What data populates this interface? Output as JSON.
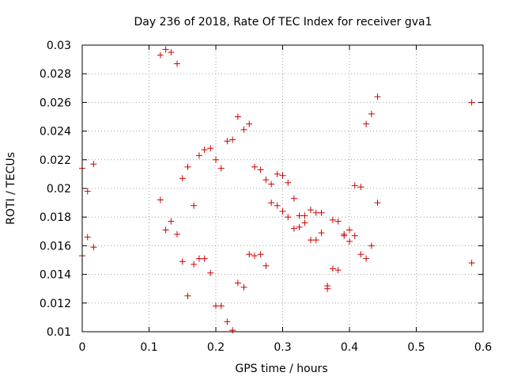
{
  "chart_data": {
    "type": "scatter",
    "title": "Day 236 of 2018, Rate Of TEC Index for receiver gva1",
    "xlabel": "GPS time / hours",
    "ylabel": "ROTI / TECUs",
    "xlim": [
      0,
      0.6
    ],
    "ylim": [
      0.01,
      0.03
    ],
    "xticks": [
      "0",
      "0.1",
      "0.2",
      "0.3",
      "0.4",
      "0.5",
      "0.6"
    ],
    "yticks": [
      "0.01",
      "0.012",
      "0.014",
      "0.016",
      "0.018",
      "0.02",
      "0.022",
      "0.024",
      "0.026",
      "0.028",
      "0.03"
    ],
    "grid": true,
    "marker": "+",
    "marker_color": "#cc0000",
    "series": [
      {
        "name": "gva1",
        "points": [
          [
            0.0,
            0.0214
          ],
          [
            0.0,
            0.0153
          ],
          [
            0.008,
            0.0198
          ],
          [
            0.008,
            0.0166
          ],
          [
            0.017,
            0.0217
          ],
          [
            0.017,
            0.0159
          ],
          [
            0.117,
            0.0293
          ],
          [
            0.117,
            0.0192
          ],
          [
            0.125,
            0.0297
          ],
          [
            0.125,
            0.0171
          ],
          [
            0.133,
            0.0295
          ],
          [
            0.133,
            0.0177
          ],
          [
            0.142,
            0.0287
          ],
          [
            0.142,
            0.0168
          ],
          [
            0.15,
            0.0207
          ],
          [
            0.15,
            0.0149
          ],
          [
            0.158,
            0.0215
          ],
          [
            0.158,
            0.0125
          ],
          [
            0.167,
            0.0188
          ],
          [
            0.167,
            0.0147
          ],
          [
            0.175,
            0.0223
          ],
          [
            0.175,
            0.0151
          ],
          [
            0.183,
            0.0227
          ],
          [
            0.183,
            0.0151
          ],
          [
            0.192,
            0.0228
          ],
          [
            0.192,
            0.0141
          ],
          [
            0.2,
            0.022
          ],
          [
            0.2,
            0.0118
          ],
          [
            0.208,
            0.0214
          ],
          [
            0.208,
            0.0118
          ],
          [
            0.217,
            0.0233
          ],
          [
            0.217,
            0.0107
          ],
          [
            0.225,
            0.0234
          ],
          [
            0.225,
            0.0101
          ],
          [
            0.233,
            0.025
          ],
          [
            0.233,
            0.0134
          ],
          [
            0.242,
            0.0241
          ],
          [
            0.242,
            0.0131
          ],
          [
            0.25,
            0.0245
          ],
          [
            0.25,
            0.0154
          ],
          [
            0.258,
            0.0215
          ],
          [
            0.258,
            0.0153
          ],
          [
            0.267,
            0.0213
          ],
          [
            0.267,
            0.0154
          ],
          [
            0.275,
            0.0206
          ],
          [
            0.275,
            0.0146
          ],
          [
            0.283,
            0.0203
          ],
          [
            0.283,
            0.019
          ],
          [
            0.292,
            0.021
          ],
          [
            0.292,
            0.0188
          ],
          [
            0.3,
            0.0209
          ],
          [
            0.3,
            0.0184
          ],
          [
            0.308,
            0.0204
          ],
          [
            0.308,
            0.018
          ],
          [
            0.317,
            0.0193
          ],
          [
            0.317,
            0.0172
          ],
          [
            0.325,
            0.0181
          ],
          [
            0.325,
            0.0173
          ],
          [
            0.333,
            0.0181
          ],
          [
            0.333,
            0.0176
          ],
          [
            0.342,
            0.0185
          ],
          [
            0.342,
            0.0164
          ],
          [
            0.35,
            0.0183
          ],
          [
            0.35,
            0.0164
          ],
          [
            0.358,
            0.0183
          ],
          [
            0.358,
            0.0169
          ],
          [
            0.367,
            0.0132
          ],
          [
            0.367,
            0.013
          ],
          [
            0.375,
            0.0178
          ],
          [
            0.375,
            0.0144
          ],
          [
            0.383,
            0.0177
          ],
          [
            0.383,
            0.0143
          ],
          [
            0.392,
            0.0168
          ],
          [
            0.392,
            0.0167
          ],
          [
            0.4,
            0.0171
          ],
          [
            0.4,
            0.0163
          ],
          [
            0.408,
            0.0202
          ],
          [
            0.408,
            0.0167
          ],
          [
            0.417,
            0.0201
          ],
          [
            0.417,
            0.0154
          ],
          [
            0.425,
            0.0245
          ],
          [
            0.425,
            0.0151
          ],
          [
            0.433,
            0.0252
          ],
          [
            0.433,
            0.016
          ],
          [
            0.442,
            0.0264
          ],
          [
            0.442,
            0.019
          ],
          [
            0.583,
            0.026
          ],
          [
            0.583,
            0.0148
          ]
        ]
      }
    ]
  }
}
